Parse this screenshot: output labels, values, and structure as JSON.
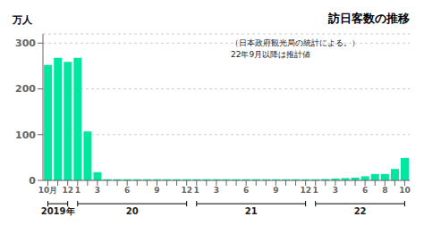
{
  "chart_data": {
    "type": "bar",
    "title": "訪日客数の推移",
    "subtitle": [
      "（日本政府観光局の統計による。）",
      "22年9月以降は推計値"
    ],
    "ylabel": "万人",
    "categories": [
      "10月",
      null,
      "12",
      "1",
      null,
      "3",
      null,
      null,
      "6",
      null,
      null,
      "9",
      null,
      null,
      "12",
      "1",
      null,
      "3",
      null,
      null,
      "6",
      null,
      null,
      "9",
      null,
      null,
      "12",
      "1",
      null,
      "3",
      null,
      null,
      "6",
      null,
      "8",
      null,
      "10"
    ],
    "values": [
      252,
      268,
      259,
      268,
      107,
      18,
      2.5,
      2.5,
      2.5,
      2.5,
      2.5,
      2.5,
      2.5,
      2.5,
      2.5,
      2.5,
      2.5,
      2.5,
      2.5,
      2.5,
      2.5,
      2.5,
      2.5,
      2.5,
      2.5,
      2.5,
      2.5,
      2.5,
      3,
      4,
      5,
      6,
      9,
      14,
      14,
      25,
      49
    ],
    "color": "#00e8a0",
    "ylim": [
      0,
      320
    ],
    "yticks": [
      0,
      100,
      200,
      300
    ],
    "grid": true,
    "annotations": [
      {
        "text": "2019年",
        "start": 0,
        "end": 2
      },
      {
        "text": "20",
        "start": 3,
        "end": 14
      },
      {
        "text": "21",
        "start": 15,
        "end": 26
      },
      {
        "text": "22",
        "start": 27,
        "end": 36
      }
    ]
  }
}
